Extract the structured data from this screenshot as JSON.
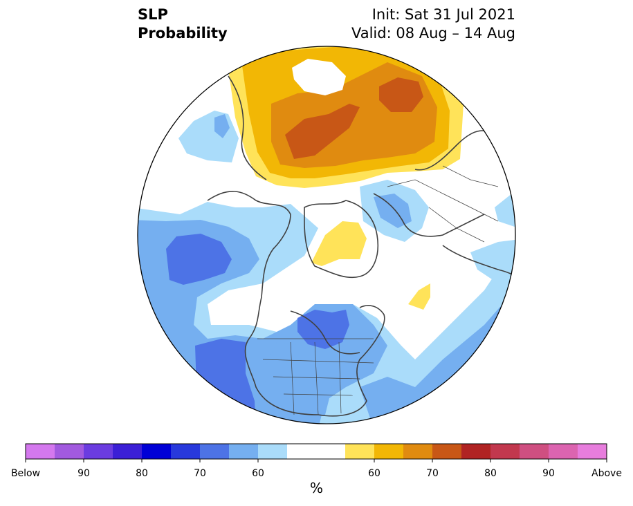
{
  "title": {
    "variable": "SLP",
    "quantity": "Probability",
    "init": "Init: Sat 31 Jul 2021",
    "valid": "Valid: 08 Aug – 14 Aug"
  },
  "colorbar": {
    "colors": [
      "#d478ee",
      "#a25adf",
      "#6b3ce0",
      "#3b1fd6",
      "#0000d6",
      "#2839dc",
      "#4d73e6",
      "#75aff0",
      "#aadcfa",
      "#ffffff",
      "#ffe359",
      "#f2b705",
      "#e08b10",
      "#c85716",
      "#b02323",
      "#c2384e",
      "#cf4f81",
      "#dc64b0",
      "#e77ddd"
    ],
    "center_span": 2,
    "tick_labels": [
      "Below",
      "90",
      "80",
      "70",
      "60",
      "60",
      "70",
      "80",
      "90",
      "Above"
    ],
    "unit": "%"
  },
  "map": {
    "projection": "north-polar-stereographic",
    "palette": {
      "below_55": "#aadcfa",
      "below_60": "#75aff0",
      "below_70": "#4d73e6",
      "above_55": "#ffe359",
      "above_60": "#f2b705",
      "above_65": "#e08b10",
      "above_70": "#c85716"
    }
  }
}
